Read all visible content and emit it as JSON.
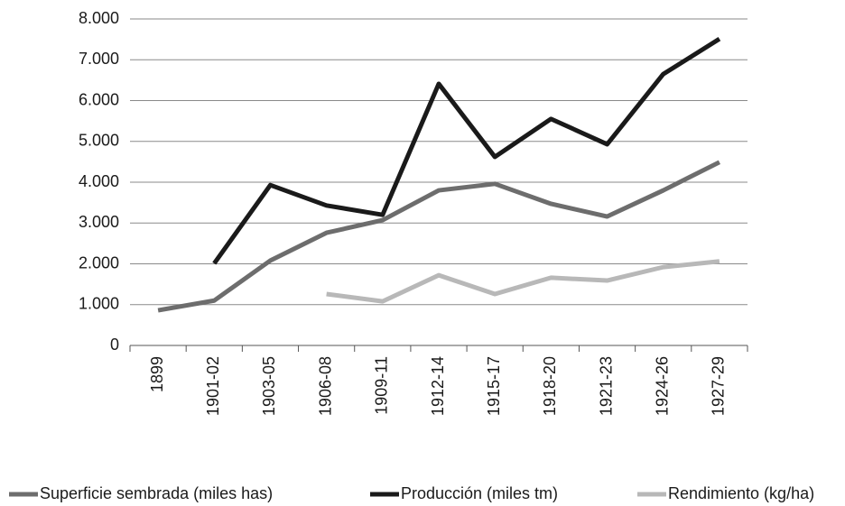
{
  "chart_data": {
    "type": "line",
    "categories": [
      "1899",
      "1901-02",
      "1903-05",
      "1906-08",
      "1909-11",
      "1912-14",
      "1915-17",
      "1918-20",
      "1921-23",
      "1924-26",
      "1927-29"
    ],
    "series": [
      {
        "name": "Superficie sembrada (miles has)",
        "color": "#6d6d6d",
        "values": [
          860,
          1100,
          2080,
          2760,
          3070,
          3800,
          3960,
          3470,
          3160,
          3800,
          4490
        ]
      },
      {
        "name": "Producción (miles tm)",
        "color": "#1a1a1a",
        "values": [
          null,
          2010,
          3930,
          3430,
          3200,
          6410,
          4620,
          5550,
          4930,
          6650,
          7510
        ]
      },
      {
        "name": "Rendimiento (kg/ha)",
        "color": "#b8b8b8",
        "values": [
          null,
          null,
          null,
          1260,
          1080,
          1720,
          1260,
          1660,
          1590,
          1920,
          2060
        ]
      }
    ],
    "ylim": [
      0,
      8000
    ],
    "yticks": [
      0,
      {
        "value": 1000,
        "label": "1.000"
      },
      {
        "value": 2000,
        "label": "2.000"
      },
      {
        "value": 3000,
        "label": "3.000"
      },
      {
        "value": 4000,
        "label": "4.000"
      },
      {
        "value": 5000,
        "label": "5.000"
      },
      {
        "value": 6000,
        "label": "6.000"
      },
      {
        "value": 7000,
        "label": "7.000"
      },
      {
        "value": 8000,
        "label": "8.000"
      }
    ],
    "grid": true,
    "legend": "bottom"
  }
}
